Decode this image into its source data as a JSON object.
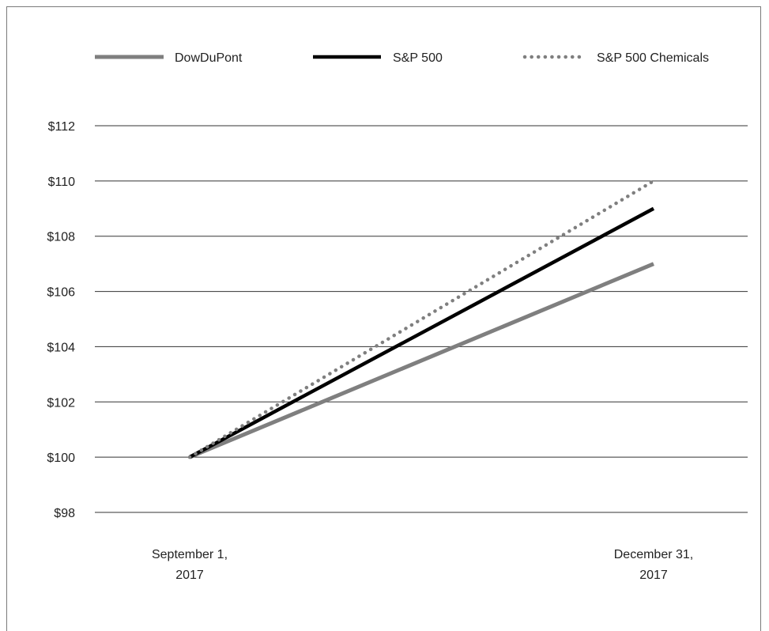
{
  "chart_data": {
    "type": "line",
    "title": "",
    "xlabel": "",
    "ylabel": "",
    "x": [
      [
        "September 1,",
        "2017"
      ],
      [
        "December 31,",
        "2017"
      ]
    ],
    "ylim": [
      98,
      112
    ],
    "yticks": [
      98,
      100,
      102,
      104,
      106,
      108,
      110,
      112
    ],
    "ytick_labels": [
      "$98",
      "$100",
      "$102",
      "$104",
      "$106",
      "$108",
      "$110",
      "$112"
    ],
    "grid": "horizontal",
    "legend_position": "top",
    "series": [
      {
        "name": "DowDuPont",
        "values": [
          100,
          107
        ],
        "color": "#7f7f7f",
        "style": "solid"
      },
      {
        "name": "S&P 500",
        "values": [
          100,
          109
        ],
        "color": "#000000",
        "style": "solid"
      },
      {
        "name": "S&P 500 Chemicals",
        "values": [
          100,
          110
        ],
        "color": "#7f7f7f",
        "style": "dotted"
      }
    ]
  }
}
